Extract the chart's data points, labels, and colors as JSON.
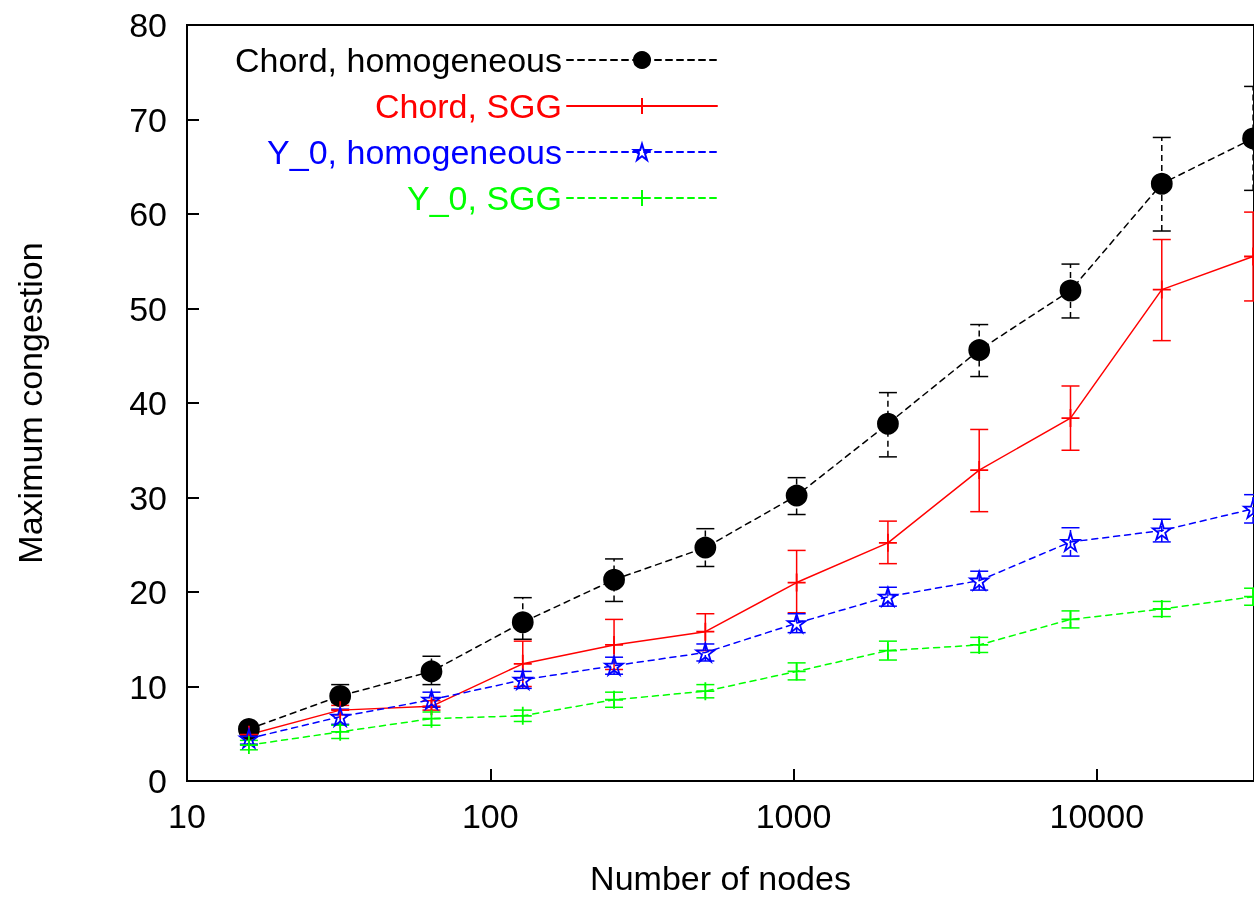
{
  "chart_data": {
    "type": "line",
    "xlabel": "Number of nodes",
    "ylabel": "Maximum congestion",
    "log": "x",
    "x": [
      16,
      32,
      64,
      128,
      256,
      512,
      1024,
      2048,
      4096,
      8192,
      16384,
      32768
    ],
    "xlim": [
      10,
      33000
    ],
    "xticks": [
      10,
      100,
      1000,
      10000
    ],
    "ylim": [
      0,
      80
    ],
    "yticks": [
      0,
      10,
      20,
      30,
      40,
      50,
      60,
      70,
      80
    ],
    "legend": "top left",
    "series": [
      {
        "name": "Chord, homogeneous",
        "color": "#000000",
        "marker": "circle",
        "line_style": "dashed",
        "values": [
          5.5,
          9.0,
          11.6,
          16.8,
          21.3,
          24.7,
          30.2,
          37.8,
          45.6,
          51.9,
          63.2,
          68.0
        ],
        "errors": [
          [
            5.0,
            6.0
          ],
          [
            8.3,
            10.2
          ],
          [
            10.2,
            13.2
          ],
          [
            15.0,
            19.4
          ],
          [
            19.0,
            23.5
          ],
          [
            22.7,
            26.7
          ],
          [
            28.2,
            32.1
          ],
          [
            34.3,
            41.1
          ],
          [
            42.8,
            48.3
          ],
          [
            49.0,
            54.7
          ],
          [
            58.2,
            68.1
          ],
          [
            62.5,
            73.5
          ]
        ]
      },
      {
        "name": "Chord, SGG",
        "color": "#ff0000",
        "marker": "cross",
        "line_style": "solid",
        "values": [
          4.9,
          7.5,
          7.9,
          12.4,
          14.4,
          15.8,
          21.0,
          25.2,
          32.9,
          38.4,
          52.0,
          55.5
        ],
        "errors": [
          null,
          [
            7.0,
            8.0
          ],
          [
            7.5,
            8.5
          ],
          [
            10.0,
            14.8
          ],
          [
            11.8,
            17.1
          ],
          [
            13.8,
            17.7
          ],
          [
            17.8,
            24.4
          ],
          [
            23.0,
            27.5
          ],
          [
            28.5,
            37.2
          ],
          [
            35.0,
            41.8
          ],
          [
            46.6,
            57.3
          ],
          [
            50.8,
            60.2
          ]
        ]
      },
      {
        "name": "Y_0, homogeneous",
        "color": "#0000ff",
        "marker": "star",
        "line_style": "dashed",
        "values": [
          4.5,
          6.8,
          8.6,
          10.7,
          12.2,
          13.6,
          16.7,
          19.5,
          21.2,
          25.3,
          26.5,
          28.8
        ],
        "errors": [
          0.6,
          0.8,
          0.8,
          0.9,
          0.9,
          0.9,
          1.0,
          1.0,
          1.0,
          1.5,
          1.2,
          1.5
        ]
      },
      {
        "name": "Y_0, SGG",
        "color": "#00ff00",
        "marker": "cross",
        "line_style": "dashed",
        "values": [
          3.8,
          5.2,
          6.6,
          6.9,
          8.6,
          9.5,
          11.6,
          13.8,
          14.4,
          17.1,
          18.2,
          19.5
        ],
        "errors": [
          0.5,
          0.7,
          0.7,
          0.6,
          0.8,
          0.7,
          0.9,
          1.0,
          0.8,
          0.9,
          0.8,
          0.9
        ]
      }
    ]
  }
}
